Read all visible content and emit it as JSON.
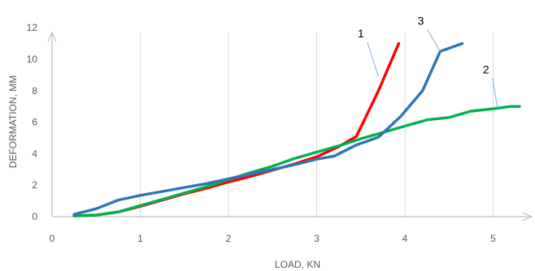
{
  "chart_data": {
    "type": "line",
    "title": "",
    "xlabel": "LOAD, KN",
    "ylabel": "DEFORMATION, MM",
    "xlim": [
      0,
      5.5
    ],
    "ylim": [
      0,
      12
    ],
    "xticks": [
      "0",
      "1",
      "2",
      "3",
      "4",
      "5"
    ],
    "yticks": [
      "0",
      "2",
      "4",
      "6",
      "8",
      "10",
      "12"
    ],
    "grid": "vertical",
    "series": [
      {
        "name": "1",
        "color": "#ff0000",
        "x": [
          0.25,
          0.5,
          0.75,
          1.0,
          1.25,
          1.5,
          1.75,
          2.0,
          2.25,
          2.5,
          2.75,
          3.0,
          3.25,
          3.45,
          3.7,
          3.93
        ],
        "y": [
          0.05,
          0.1,
          0.3,
          0.65,
          1.05,
          1.45,
          1.8,
          2.2,
          2.55,
          2.95,
          3.35,
          3.8,
          4.45,
          5.1,
          8.0,
          11.0
        ]
      },
      {
        "name": "2",
        "color": "#00b050",
        "x": [
          0.25,
          0.5,
          0.75,
          1.0,
          1.25,
          1.5,
          1.75,
          2.0,
          2.25,
          2.5,
          2.75,
          3.0,
          3.25,
          3.5,
          3.75,
          4.0,
          4.25,
          4.5,
          4.75,
          5.0,
          5.2,
          5.3
        ],
        "y": [
          0.05,
          0.1,
          0.3,
          0.7,
          1.1,
          1.5,
          1.9,
          2.35,
          2.8,
          3.2,
          3.7,
          4.1,
          4.5,
          4.95,
          5.35,
          5.75,
          6.15,
          6.3,
          6.7,
          6.85,
          7.0,
          7.0
        ]
      },
      {
        "name": "3",
        "color": "#2e75b6",
        "x": [
          0.25,
          0.5,
          0.75,
          1.0,
          1.25,
          1.5,
          1.75,
          2.0,
          2.25,
          2.5,
          2.75,
          3.0,
          3.2,
          3.45,
          3.7,
          3.95,
          4.2,
          4.4,
          4.65
        ],
        "y": [
          0.15,
          0.5,
          1.05,
          1.35,
          1.6,
          1.85,
          2.1,
          2.4,
          2.7,
          3.0,
          3.3,
          3.65,
          3.85,
          4.55,
          5.05,
          6.35,
          8.0,
          10.5,
          11.0
        ]
      }
    ],
    "labels": [
      {
        "text": "1",
        "series": 0,
        "label_at": [
          3.5,
          11.4
        ],
        "leader_to": [
          3.7,
          8.9
        ]
      },
      {
        "text": "3",
        "series": 2,
        "label_at": [
          4.18,
          12.2
        ],
        "leader_to": [
          4.4,
          10.5
        ]
      },
      {
        "text": "2",
        "series": 1,
        "label_at": [
          4.92,
          9.1
        ],
        "leader_to": [
          5.05,
          6.9
        ]
      }
    ]
  }
}
